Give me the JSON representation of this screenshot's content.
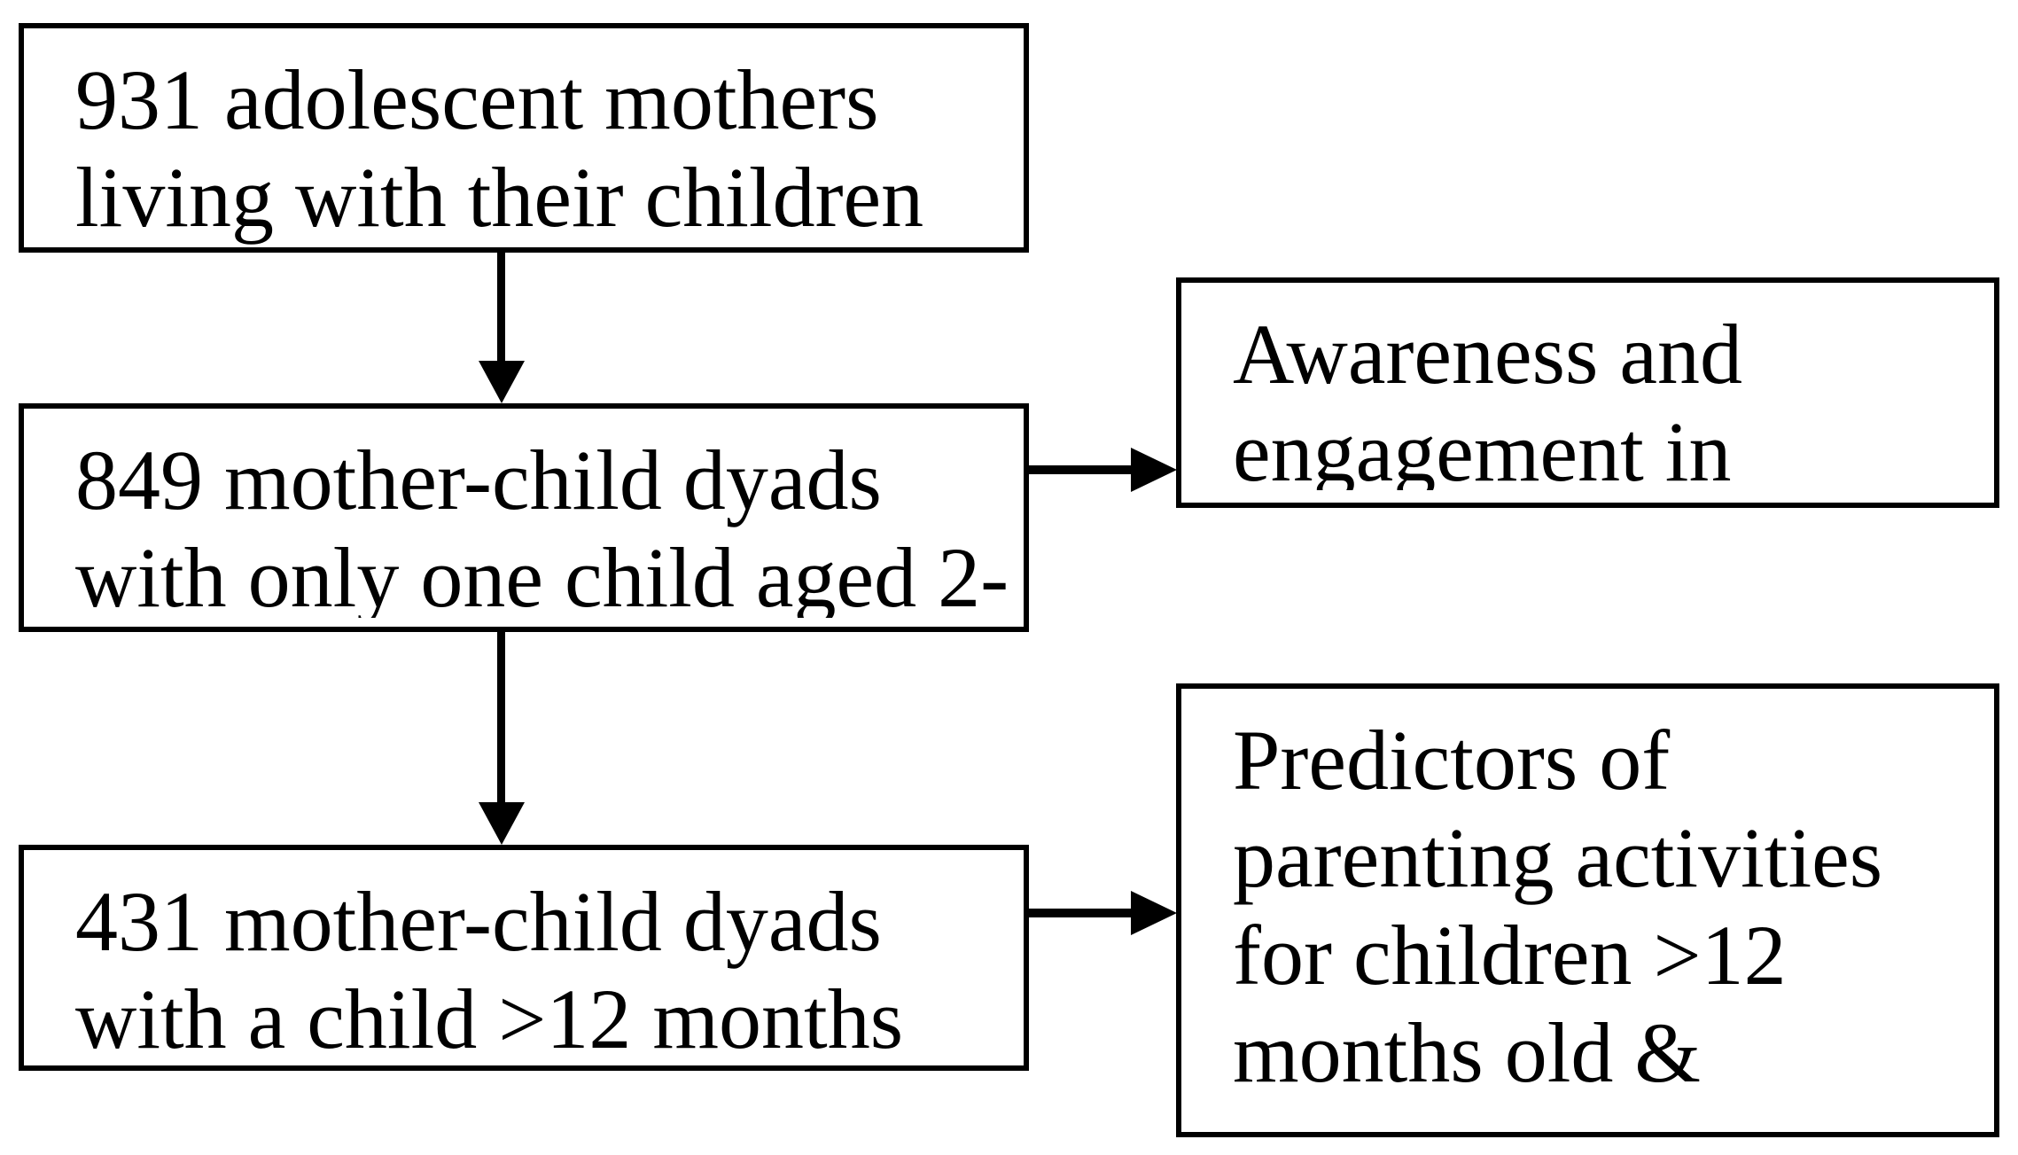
{
  "page": {
    "background_color": "#ffffff",
    "ink_color": "#000000"
  },
  "diagram": {
    "boxes": [
      {
        "id": "mothers-931",
        "lines": [
          "931 adolescent mothers",
          "living with their children"
        ]
      },
      {
        "id": "dyads-849",
        "lines": [
          "849 mother-child dyads",
          "with only one child aged 2-"
        ]
      },
      {
        "id": "dyads-431",
        "lines": [
          "431 mother-child dyads",
          "with a child >12 months"
        ]
      },
      {
        "id": "awareness",
        "lines": [
          "Awareness and",
          "engagement in"
        ]
      },
      {
        "id": "predictors",
        "lines": [
          "Predictors of",
          "parenting activities",
          "for children >12",
          "months old &"
        ]
      }
    ],
    "arrows": [
      {
        "from": "mothers-931",
        "to": "dyads-849",
        "direction": "down"
      },
      {
        "from": "dyads-849",
        "to": "dyads-431",
        "direction": "down"
      },
      {
        "from": "dyads-849",
        "to": "awareness",
        "direction": "right"
      },
      {
        "from": "dyads-431",
        "to": "predictors",
        "direction": "right"
      }
    ]
  }
}
